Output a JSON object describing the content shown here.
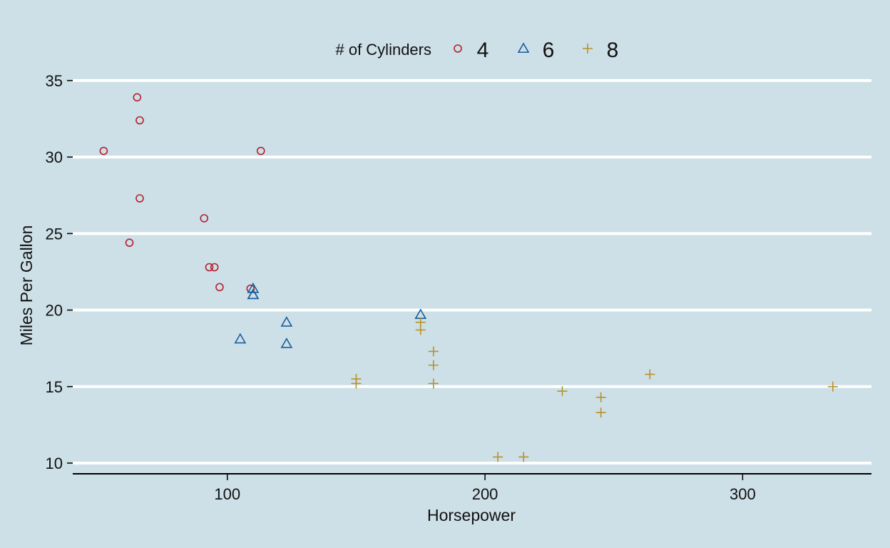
{
  "chart_data": {
    "type": "scatter",
    "title": "",
    "xlabel": "Horsepower",
    "ylabel": "Miles Per Gallon",
    "xlim": [
      40,
      350
    ],
    "ylim": [
      9.3,
      35.6
    ],
    "x_ticks": [
      100,
      200,
      300
    ],
    "y_ticks": [
      10,
      15,
      20,
      25,
      30,
      35
    ],
    "grid": "horizontal",
    "legend": {
      "title": "# of Cylinders",
      "position": "top"
    },
    "colors": {
      "background": "#cddfe7",
      "grid": "#ffffff",
      "axis": "#000000"
    },
    "series": [
      {
        "name": "4",
        "marker": "circle",
        "color": "#b5202e",
        "points": [
          [
            52,
            30.4
          ],
          [
            62,
            24.4
          ],
          [
            65,
            33.9
          ],
          [
            66,
            32.4
          ],
          [
            66,
            27.3
          ],
          [
            91,
            26.0
          ],
          [
            93,
            22.8
          ],
          [
            95,
            22.8
          ],
          [
            97,
            21.5
          ],
          [
            109,
            21.4
          ],
          [
            113,
            30.4
          ]
        ]
      },
      {
        "name": "6",
        "marker": "triangle",
        "color": "#1a5e9a",
        "points": [
          [
            105,
            18.1
          ],
          [
            110,
            21.0
          ],
          [
            110,
            21.0
          ],
          [
            110,
            21.4
          ],
          [
            123,
            19.2
          ],
          [
            123,
            17.8
          ],
          [
            175,
            19.7
          ]
        ]
      },
      {
        "name": "8",
        "marker": "plus",
        "color": "#b8922a",
        "points": [
          [
            150,
            15.5
          ],
          [
            150,
            15.2
          ],
          [
            175,
            19.2
          ],
          [
            175,
            18.7
          ],
          [
            180,
            17.3
          ],
          [
            180,
            16.4
          ],
          [
            180,
            15.2
          ],
          [
            205,
            10.4
          ],
          [
            215,
            10.4
          ],
          [
            230,
            14.7
          ],
          [
            245,
            14.3
          ],
          [
            245,
            13.3
          ],
          [
            264,
            15.8
          ],
          [
            335,
            15.0
          ]
        ]
      }
    ]
  }
}
